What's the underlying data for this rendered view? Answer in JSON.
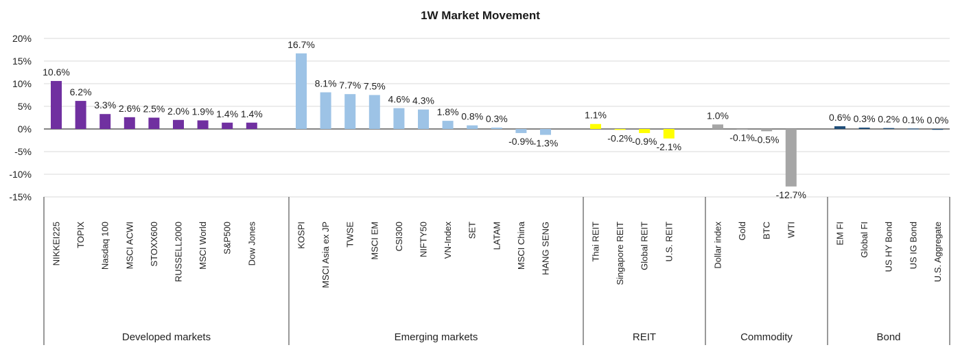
{
  "chart_data": {
    "type": "bar",
    "title": "1W Market Movement",
    "ylim": [
      -15,
      20
    ],
    "yticks": [
      "20%",
      "15%",
      "10%",
      "5%",
      "0%",
      "-5%",
      "-10%",
      "-15%"
    ],
    "grid": true,
    "groups": [
      {
        "name": "Developed  markets",
        "color": "#7030a0",
        "categories": [
          "NIKKEI225",
          "TOPIX",
          "Nasdaq 100",
          "MSCI ACWI",
          "STOXX600",
          "RUSSELL2000",
          "MSCI World",
          "S&P500",
          "Dow Jones"
        ],
        "values": [
          10.6,
          6.2,
          3.3,
          2.6,
          2.5,
          2.0,
          1.9,
          1.4,
          1.4
        ],
        "labels": [
          "10.6%",
          "6.2%",
          "3.3%",
          "2.6%",
          "2.5%",
          "2.0%",
          "1.9%",
          "1.4%",
          "1.4%"
        ]
      },
      {
        "name": "Emerging markets",
        "color": "#9dc3e6",
        "categories": [
          "KOSPI",
          "MSCI Asia ex JP",
          "TWSE",
          "MSCI EM",
          "CSI300",
          "NIFTY50",
          "VN-Index",
          "SET",
          "LATAM",
          "MSCI China",
          "HANG SENG"
        ],
        "values": [
          16.7,
          8.1,
          7.7,
          7.5,
          4.6,
          4.3,
          1.8,
          0.8,
          0.3,
          -0.9,
          -1.3
        ],
        "labels": [
          "16.7%",
          "8.1%",
          "7.7%",
          "7.5%",
          "4.6%",
          "4.3%",
          "1.8%",
          "0.8%",
          "0.3%",
          "-0.9%",
          "-1.3%"
        ]
      },
      {
        "name": "REIT",
        "color": "#ffff00",
        "categories": [
          "Thai REIT",
          "Singapore REIT",
          "Global REIT",
          "U.S. REIT"
        ],
        "values": [
          1.1,
          -0.2,
          -0.9,
          -2.1
        ],
        "labels": [
          "1.1%",
          "-0.2%",
          "-0.9%",
          "-2.1%"
        ]
      },
      {
        "name": "Commodity",
        "color": "#a6a6a6",
        "categories": [
          "Dollar index",
          "Gold",
          "BTC",
          "WTI"
        ],
        "values": [
          1.0,
          -0.1,
          -0.5,
          -12.7
        ],
        "labels": [
          "1.0%",
          "-0.1%",
          "-0.5%",
          "-12.7%"
        ]
      },
      {
        "name": "Bond",
        "color": "#1f4e79",
        "categories": [
          "EM FI",
          "Global FI",
          "US HY Bond",
          "US IG Bond",
          "U.S. Aggregate"
        ],
        "values": [
          0.6,
          0.3,
          0.2,
          0.1,
          0.0
        ],
        "labels": [
          "0.6%",
          "0.3%",
          "0.2%",
          "0.1%",
          "0.0%"
        ]
      }
    ]
  }
}
